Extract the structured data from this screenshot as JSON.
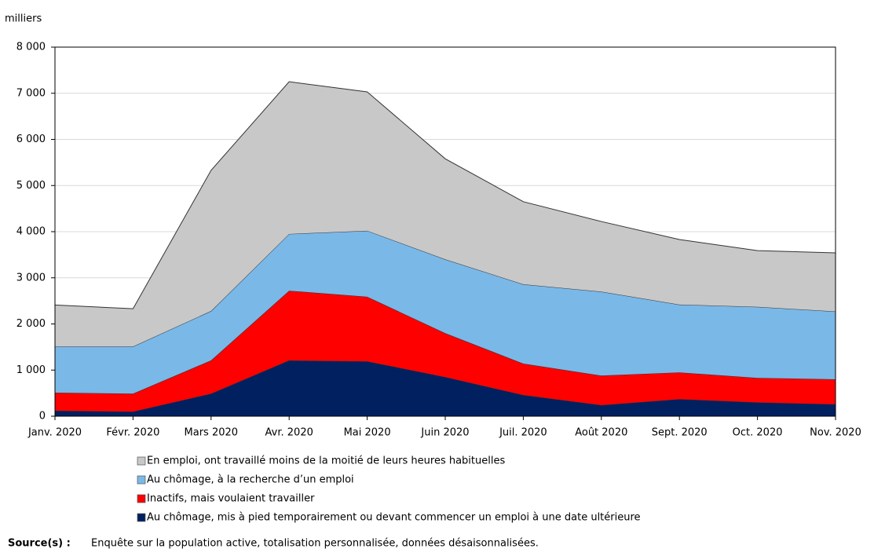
{
  "chart_data": {
    "type": "stacked-area",
    "y_label": "milliers",
    "categories": [
      "Janv. 2020",
      "Févr. 2020",
      "Mars 2020",
      "Avr. 2020",
      "Mai 2020",
      "Juin 2020",
      "Juil. 2020",
      "Août 2020",
      "Sept. 2020",
      "Oct. 2020",
      "Nov. 2020"
    ],
    "series": [
      {
        "name": "Au chômage, mis à pied temporairement ou devant commencer un emploi à une date ultérieure",
        "color": "#002060",
        "values": [
          120,
          100,
          490,
          1210,
          1190,
          850,
          460,
          240,
          370,
          300,
          260
        ]
      },
      {
        "name": "Inactifs, mais voulaient travailler",
        "color": "#ff0000",
        "values": [
          390,
          390,
          720,
          1510,
          1400,
          950,
          680,
          640,
          580,
          530,
          540
        ]
      },
      {
        "name": "Au chômage, à la recherche d’un emploi",
        "color": "#7ab8e8",
        "values": [
          1000,
          1020,
          1070,
          1230,
          1430,
          1600,
          1720,
          1820,
          1470,
          1540,
          1470
        ]
      },
      {
        "name": "En emploi, ont travaillé moins de la moitié de leurs heures habituelles",
        "color": "#c8c8c8",
        "values": [
          900,
          820,
          3050,
          3300,
          3010,
          2180,
          1790,
          1520,
          1410,
          1220,
          1270
        ]
      }
    ],
    "ylim": [
      0,
      8000
    ],
    "yticks": [
      0,
      {
        "value": 1000,
        "label": "1 000"
      },
      {
        "value": 2000,
        "label": "2 000"
      },
      {
        "value": 3000,
        "label": "3 000"
      },
      {
        "value": 4000,
        "label": "4 000"
      },
      {
        "value": 5000,
        "label": "5 000"
      },
      {
        "value": 6000,
        "label": "6 000"
      },
      {
        "value": 7000,
        "label": "7 000"
      },
      {
        "value": 8000,
        "label": "8 000"
      }
    ],
    "grid": true,
    "source_label": "Source(s) :",
    "source_text": "Enquête sur la population active, totalisation personnalisée, données désaisonnalisées."
  }
}
